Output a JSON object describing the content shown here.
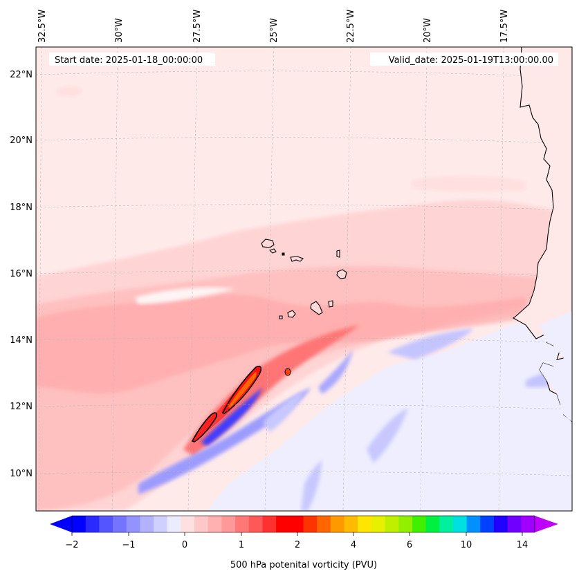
{
  "header": {
    "start_date": "Start date: 2025-01-18_00:00:00",
    "valid_date": "Valid_date: 2025-01-19T13:00:00.00"
  },
  "map": {
    "longitude_labels": [
      "32.5°W",
      "30°W",
      "27.5°W",
      "25°W",
      "22.5°W",
      "20°W",
      "17.5°W"
    ],
    "latitude_labels": [
      "22°N",
      "20°N",
      "18°N",
      "16°N",
      "14°N",
      "12°N",
      "10°N"
    ],
    "land_color": "#ffffff",
    "background_field_color": "#ffe4e4"
  },
  "colorbar": {
    "label": "500 hPa potenital vorticity (PVU)",
    "tick_labels": [
      "−2",
      "−1",
      "0",
      "1",
      "2",
      "4",
      "6",
      "10",
      "14"
    ],
    "colors": [
      "#0000ff",
      "#2a2aff",
      "#5555ff",
      "#7474ff",
      "#9393ff",
      "#b2b2ff",
      "#d0d0ff",
      "#ececff",
      "#ffe0e0",
      "#ffc8c8",
      "#ffb0b0",
      "#ff9898",
      "#ff7878",
      "#ff5858",
      "#ff3030",
      "#ff0000",
      "#ff0000",
      "#ff3300",
      "#ff6600",
      "#ff9900",
      "#ffbb00",
      "#ffe600",
      "#e6f000",
      "#c0f000",
      "#90f000",
      "#40f000",
      "#00f040",
      "#00f0a0",
      "#00e0e0",
      "#0090ff",
      "#0040ff",
      "#2000ff",
      "#7000ff",
      "#a000ff"
    ],
    "extend_min_color": "#0000ff",
    "extend_max_color": "#c000ff"
  }
}
